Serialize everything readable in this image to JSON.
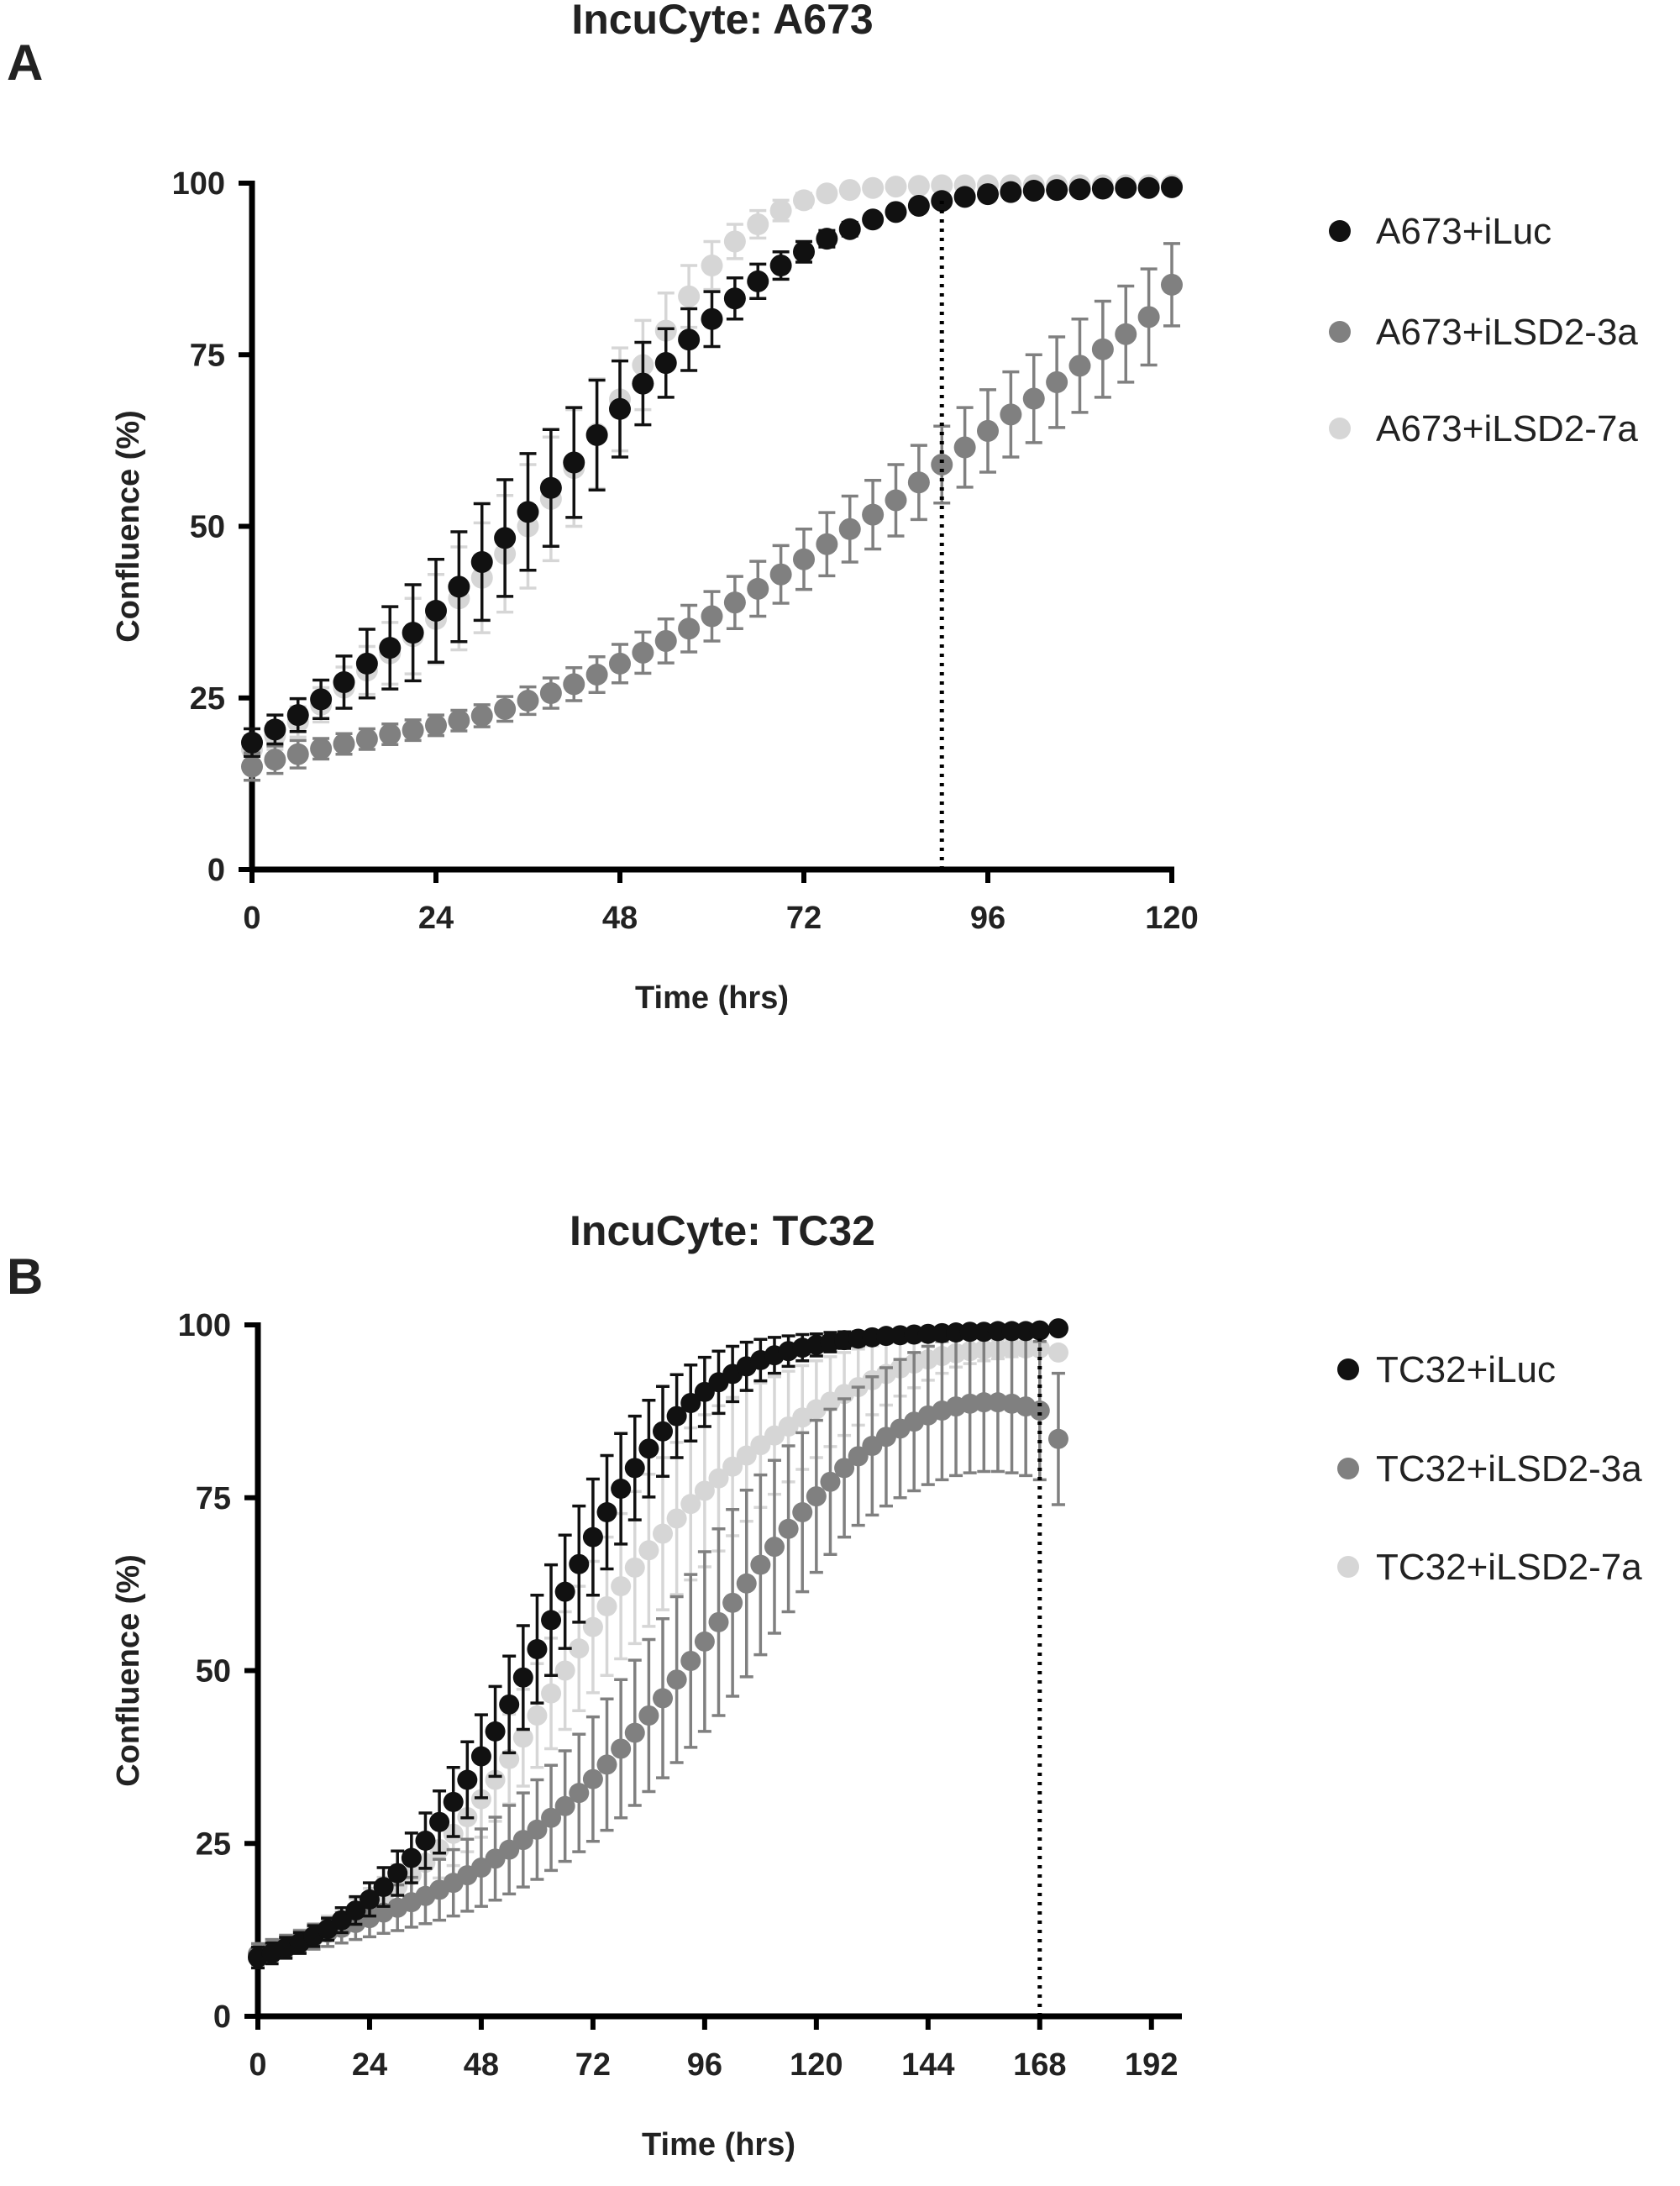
{
  "panels": [
    {
      "letter": "A"
    },
    {
      "letter": "B"
    }
  ],
  "chart_data": [
    {
      "type": "scatter",
      "title": "IncuCyte: A673",
      "xlabel": "Time (hrs)",
      "ylabel": "Confluence (%)",
      "xlim": [
        0,
        120
      ],
      "ylim": [
        0,
        100
      ],
      "xticks": [
        0,
        24,
        48,
        72,
        96,
        120
      ],
      "yticks": [
        0,
        25,
        50,
        75,
        100
      ],
      "reference_line_x": 90,
      "legend_position": "right",
      "series": [
        {
          "name": "A673+iLuc",
          "color": "#111111",
          "x": [
            0,
            3,
            6,
            9,
            12,
            15,
            18,
            21,
            24,
            27,
            30,
            33,
            36,
            39,
            42,
            45,
            48,
            51,
            54,
            57,
            60,
            63,
            66,
            69,
            72,
            75,
            78,
            81,
            84,
            87,
            90,
            93,
            96,
            99,
            102,
            105,
            108,
            111,
            114,
            117,
            120
          ],
          "y": [
            18.5,
            20.4,
            22.5,
            24.8,
            27.3,
            30.0,
            32.3,
            34.5,
            37.7,
            41.2,
            44.8,
            48.3,
            52.1,
            55.6,
            59.3,
            63.3,
            67.1,
            70.8,
            73.8,
            77.2,
            80.2,
            83.2,
            85.7,
            88.0,
            90.0,
            91.9,
            93.3,
            94.7,
            95.8,
            96.7,
            97.4,
            98.0,
            98.4,
            98.7,
            98.9,
            99.0,
            99.1,
            99.2,
            99.3,
            99.3,
            99.4
          ],
          "err": [
            2.0,
            2.1,
            2.4,
            2.8,
            3.8,
            5.0,
            6.0,
            7.0,
            7.5,
            8.0,
            8.5,
            8.5,
            8.5,
            8.5,
            8.0,
            8.0,
            7.0,
            6.0,
            5.0,
            4.5,
            4.0,
            3.0,
            2.5,
            2.0,
            1.5,
            1.2,
            1.0,
            0.8,
            0.7,
            0.6,
            0.5,
            0.5,
            0.5,
            0.4,
            0.4,
            0.4,
            0.3,
            0.3,
            0.3,
            0.3,
            0.3
          ]
        },
        {
          "name": "A673+iLSD2-3a",
          "color": "#808080",
          "x": [
            0,
            3,
            6,
            9,
            12,
            15,
            18,
            21,
            24,
            27,
            30,
            33,
            36,
            39,
            42,
            45,
            48,
            51,
            54,
            57,
            60,
            63,
            66,
            69,
            72,
            75,
            78,
            81,
            84,
            87,
            90,
            93,
            96,
            99,
            102,
            105,
            108,
            111,
            114,
            117,
            120
          ],
          "y": [
            15.0,
            16.0,
            16.8,
            17.6,
            18.3,
            19.0,
            19.7,
            20.3,
            21.0,
            21.7,
            22.4,
            23.4,
            24.6,
            25.7,
            27.0,
            28.4,
            30.0,
            31.6,
            33.3,
            35.1,
            36.9,
            38.9,
            40.9,
            43.0,
            45.2,
            47.4,
            49.6,
            51.7,
            53.8,
            56.4,
            59.0,
            61.5,
            63.9,
            66.3,
            68.6,
            71.0,
            73.4,
            75.8,
            78.0,
            80.5,
            85.2
          ],
          "err": [
            2.0,
            2.0,
            2.0,
            1.5,
            1.5,
            1.5,
            1.5,
            1.5,
            1.5,
            1.5,
            1.6,
            1.8,
            2.0,
            2.2,
            2.4,
            2.6,
            2.8,
            3.0,
            3.2,
            3.4,
            3.6,
            3.8,
            4.0,
            4.2,
            4.4,
            4.6,
            4.8,
            5.0,
            5.2,
            5.4,
            5.6,
            5.8,
            6.0,
            6.2,
            6.4,
            6.6,
            6.8,
            7.0,
            7.0,
            7.0,
            6.0
          ]
        },
        {
          "name": "A673+iLSD2-7a",
          "color": "#d6d6d6",
          "x": [
            0,
            3,
            6,
            9,
            12,
            15,
            18,
            21,
            24,
            27,
            30,
            33,
            36,
            39,
            42,
            45,
            48,
            51,
            54,
            57,
            60,
            63,
            66,
            69,
            72,
            75,
            78,
            81,
            84,
            87,
            90,
            93,
            96,
            99,
            102,
            105,
            108,
            111,
            114,
            117,
            120
          ],
          "y": [
            17.5,
            19.5,
            21.5,
            24.0,
            26.5,
            29.0,
            31.5,
            34.0,
            36.5,
            39.5,
            42.5,
            46.0,
            50.0,
            54.0,
            58.5,
            63.5,
            68.5,
            73.5,
            78.5,
            83.5,
            88.0,
            91.5,
            94.0,
            96.0,
            97.5,
            98.5,
            99.0,
            99.3,
            99.5,
            99.6,
            99.7,
            99.7,
            99.7,
            99.7,
            99.7,
            99.7,
            99.7,
            99.7,
            99.7,
            99.7,
            99.7
          ],
          "err": [
            2.0,
            2.0,
            2.2,
            2.5,
            3.0,
            3.5,
            4.5,
            5.5,
            6.5,
            7.5,
            8.0,
            8.5,
            9.0,
            9.0,
            8.5,
            8.0,
            7.5,
            6.5,
            5.5,
            4.5,
            3.5,
            2.5,
            2.0,
            1.5,
            1.0,
            0.8,
            0.6,
            0.5,
            0.5,
            0.5,
            0.4,
            0.4,
            0.4,
            0.4,
            0.4,
            0.4,
            0.4,
            0.4,
            0.4,
            0.4,
            0.4
          ]
        }
      ]
    },
    {
      "type": "scatter",
      "title": "IncuCyte: TC32",
      "xlabel": "Time (hrs)",
      "ylabel": "Confluence (%)",
      "xlim": [
        0,
        198
      ],
      "ylim": [
        0,
        100
      ],
      "xticks": [
        0,
        24,
        48,
        72,
        96,
        120,
        144,
        168,
        192
      ],
      "yticks": [
        0,
        25,
        50,
        75,
        100
      ],
      "reference_line_x": 168,
      "legend_position": "right",
      "series": [
        {
          "name": "TC32+iLuc",
          "color": "#111111",
          "x": [
            0,
            3,
            6,
            9,
            12,
            15,
            18,
            21,
            24,
            27,
            30,
            33,
            36,
            39,
            42,
            45,
            48,
            51,
            54,
            57,
            60,
            63,
            66,
            69,
            72,
            75,
            78,
            81,
            84,
            87,
            90,
            93,
            96,
            99,
            102,
            105,
            108,
            111,
            114,
            117,
            120,
            123,
            126,
            129,
            132,
            135,
            138,
            141,
            144,
            147,
            150,
            153,
            156,
            159,
            162,
            165,
            168,
            172
          ],
          "y": [
            8.5,
            9.1,
            9.9,
            10.6,
            11.6,
            12.6,
            13.9,
            15.3,
            16.9,
            18.7,
            20.7,
            22.9,
            25.4,
            28.1,
            31.0,
            34.2,
            37.6,
            41.2,
            45.1,
            49.0,
            53.1,
            57.3,
            61.4,
            65.4,
            69.3,
            72.9,
            76.3,
            79.3,
            82.1,
            84.6,
            86.8,
            88.7,
            90.3,
            91.7,
            92.9,
            94.0,
            94.9,
            95.6,
            96.2,
            96.7,
            97.1,
            97.5,
            97.8,
            98.0,
            98.2,
            98.4,
            98.5,
            98.6,
            98.7,
            98.8,
            98.9,
            99.0,
            99.0,
            99.1,
            99.1,
            99.1,
            99.2,
            99.5
          ],
          "err": [
            1.5,
            1.5,
            1.5,
            1.5,
            1.5,
            1.6,
            1.8,
            2.0,
            2.4,
            2.8,
            3.2,
            3.6,
            4.0,
            4.5,
            5.0,
            5.5,
            6.0,
            6.5,
            7.0,
            7.5,
            7.8,
            8.0,
            8.2,
            8.4,
            8.4,
            8.2,
            8.0,
            7.5,
            7.0,
            6.5,
            6.0,
            5.5,
            5.0,
            4.5,
            4.0,
            3.5,
            3.0,
            2.6,
            2.2,
            1.9,
            1.6,
            1.4,
            1.2,
            1.0,
            0.9,
            0.8,
            0.7,
            0.6,
            0.5,
            0.5,
            0.5,
            0.5,
            0.5,
            0.4,
            0.4,
            0.4,
            0.4,
            0.4
          ]
        },
        {
          "name": "TC32+iLSD2-3a",
          "color": "#808080",
          "x": [
            0,
            3,
            6,
            9,
            12,
            15,
            18,
            21,
            24,
            27,
            30,
            33,
            36,
            39,
            42,
            45,
            48,
            51,
            54,
            57,
            60,
            63,
            66,
            69,
            72,
            75,
            78,
            81,
            84,
            87,
            90,
            93,
            96,
            99,
            102,
            105,
            108,
            111,
            114,
            117,
            120,
            123,
            126,
            129,
            132,
            135,
            138,
            141,
            144,
            147,
            150,
            153,
            156,
            159,
            162,
            165,
            168,
            172
          ],
          "y": [
            9.0,
            9.6,
            10.2,
            10.8,
            11.5,
            12.1,
            12.8,
            13.5,
            14.2,
            15.0,
            15.7,
            16.5,
            17.4,
            18.3,
            19.3,
            20.4,
            21.5,
            22.8,
            24.1,
            25.5,
            27.0,
            28.7,
            30.4,
            32.3,
            34.3,
            36.4,
            38.7,
            41.0,
            43.5,
            46.0,
            48.7,
            51.4,
            54.2,
            57.0,
            59.8,
            62.6,
            65.3,
            67.9,
            70.5,
            72.9,
            75.2,
            77.3,
            79.3,
            81.0,
            82.5,
            83.8,
            85.0,
            86.0,
            86.9,
            87.6,
            88.2,
            88.6,
            88.8,
            88.8,
            88.6,
            88.2,
            87.6,
            83.5
          ],
          "err": [
            1.5,
            1.5,
            1.5,
            1.6,
            1.8,
            2.0,
            2.2,
            2.4,
            2.7,
            3.0,
            3.3,
            3.6,
            4.0,
            4.4,
            4.8,
            5.2,
            5.6,
            6.0,
            6.4,
            6.8,
            7.2,
            7.6,
            8.0,
            8.5,
            9.0,
            9.5,
            10.0,
            10.5,
            11.0,
            11.5,
            12.0,
            12.5,
            13.0,
            13.5,
            13.5,
            13.5,
            13.0,
            12.5,
            12.0,
            11.5,
            11.0,
            10.5,
            10.0,
            10.0,
            10.0,
            10.0,
            10.0,
            10.0,
            10.0,
            10.0,
            10.0,
            10.0,
            10.0,
            10.0,
            10.0,
            10.0,
            10.0,
            9.5
          ]
        },
        {
          "name": "TC32+iLSD2-7a",
          "color": "#d6d6d6",
          "x": [
            0,
            3,
            6,
            9,
            12,
            15,
            18,
            21,
            24,
            27,
            30,
            33,
            36,
            39,
            42,
            45,
            48,
            51,
            54,
            57,
            60,
            63,
            66,
            69,
            72,
            75,
            78,
            81,
            84,
            87,
            90,
            93,
            96,
            99,
            102,
            105,
            108,
            111,
            114,
            117,
            120,
            123,
            126,
            129,
            132,
            135,
            138,
            141,
            144,
            147,
            150,
            153,
            156,
            159,
            162,
            165,
            168,
            172
          ],
          "y": [
            9.0,
            9.6,
            10.3,
            11.0,
            11.8,
            12.7,
            13.7,
            14.8,
            16.0,
            17.3,
            18.8,
            20.4,
            22.2,
            24.2,
            26.4,
            28.8,
            31.4,
            34.2,
            37.2,
            40.3,
            43.5,
            46.7,
            50.0,
            53.2,
            56.3,
            59.3,
            62.2,
            64.9,
            67.4,
            69.8,
            72.0,
            74.1,
            76.0,
            77.8,
            79.5,
            81.1,
            82.6,
            84.0,
            85.3,
            86.6,
            87.8,
            88.9,
            90.0,
            91.0,
            92.0,
            92.9,
            93.7,
            94.4,
            95.0,
            95.5,
            95.9,
            96.2,
            96.4,
            96.5,
            96.6,
            96.6,
            96.6,
            96.0
          ],
          "err": [
            1.5,
            1.5,
            1.5,
            1.5,
            1.6,
            1.8,
            2.0,
            2.2,
            2.5,
            2.8,
            3.1,
            3.4,
            3.8,
            4.2,
            4.6,
            5.0,
            5.5,
            6.0,
            6.5,
            7.0,
            7.5,
            8.0,
            8.5,
            9.0,
            9.5,
            10.0,
            10.5,
            11.0,
            11.0,
            11.0,
            11.0,
            11.0,
            11.0,
            10.5,
            10.0,
            9.5,
            9.0,
            8.5,
            8.0,
            7.5,
            7.0,
            6.5,
            6.0,
            5.5,
            5.0,
            4.5,
            4.0,
            3.5,
            3.0,
            2.5,
            2.0,
            1.8,
            1.6,
            1.4,
            1.2,
            1.0,
            0.8,
            0.8
          ]
        }
      ]
    }
  ]
}
